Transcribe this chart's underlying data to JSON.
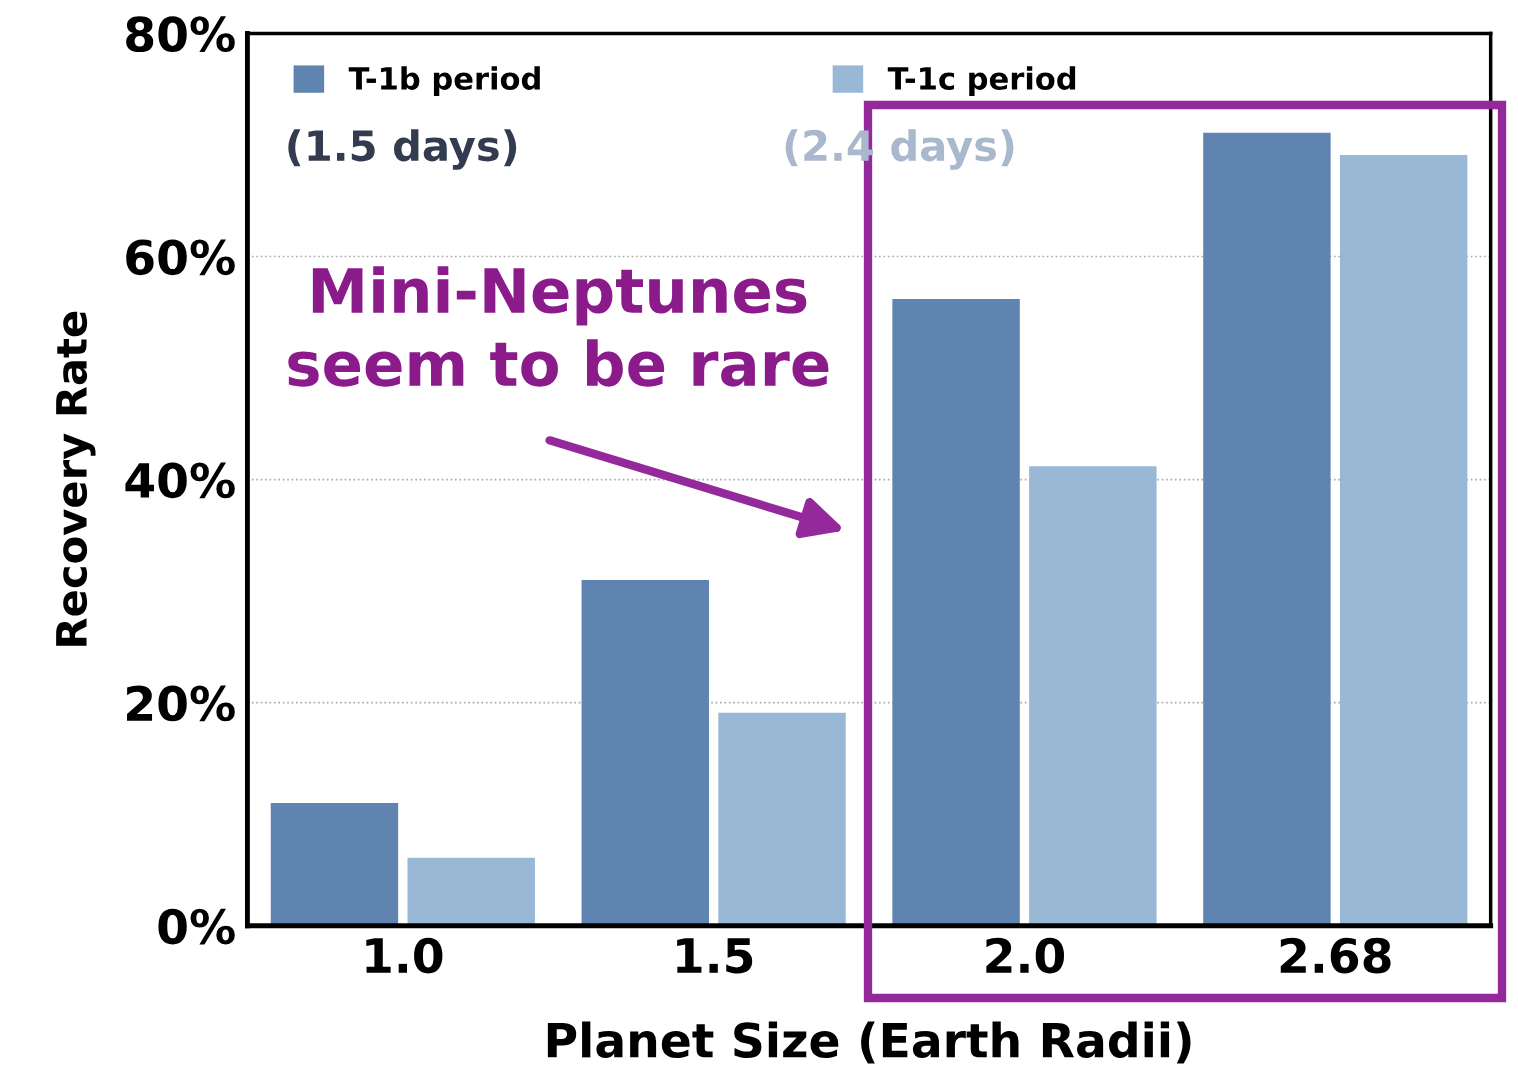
{
  "chart_data": {
    "type": "bar",
    "xlabel": "Planet Size (Earth Radii)",
    "ylabel": "Recovery Rate",
    "categories": [
      "1.0",
      "1.5",
      "2.0",
      "2.68"
    ],
    "series": [
      {
        "name": "T-1b period",
        "color": "#6084b0",
        "values": [
          11.0,
          31.0,
          56.2,
          71.1
        ]
      },
      {
        "name": "T-1c period",
        "color": "#99b8d6",
        "values": [
          6.1,
          19.1,
          41.2,
          69.1
        ]
      }
    ],
    "ylim": [
      0,
      80
    ],
    "yticks": [
      {
        "value": 0,
        "label": "0%"
      },
      {
        "value": 20,
        "label": "20%"
      },
      {
        "value": 40,
        "label": "40%"
      },
      {
        "value": 60,
        "label": "60%"
      },
      {
        "value": 80,
        "label": "80%"
      }
    ],
    "grid": "y",
    "legend": "top",
    "annotations": [
      "(1.5 days)",
      "(2.4 days)",
      "Mini-Neptunes\nseem to be rare"
    ]
  }
}
